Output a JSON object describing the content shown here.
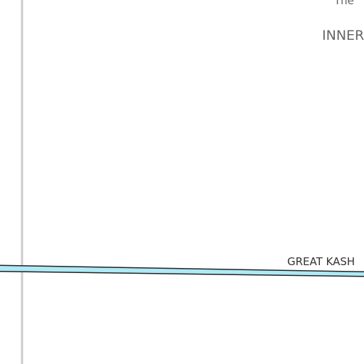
{
  "map": {
    "labels": {
      "top_partial": "The",
      "area_name": "INNER",
      "road_name": "GREAT KASH"
    },
    "colors": {
      "background": "#ffffff",
      "boundary_line": "#cccccc",
      "road_fill": "#aee9f5",
      "road_outline": "#222222"
    }
  }
}
